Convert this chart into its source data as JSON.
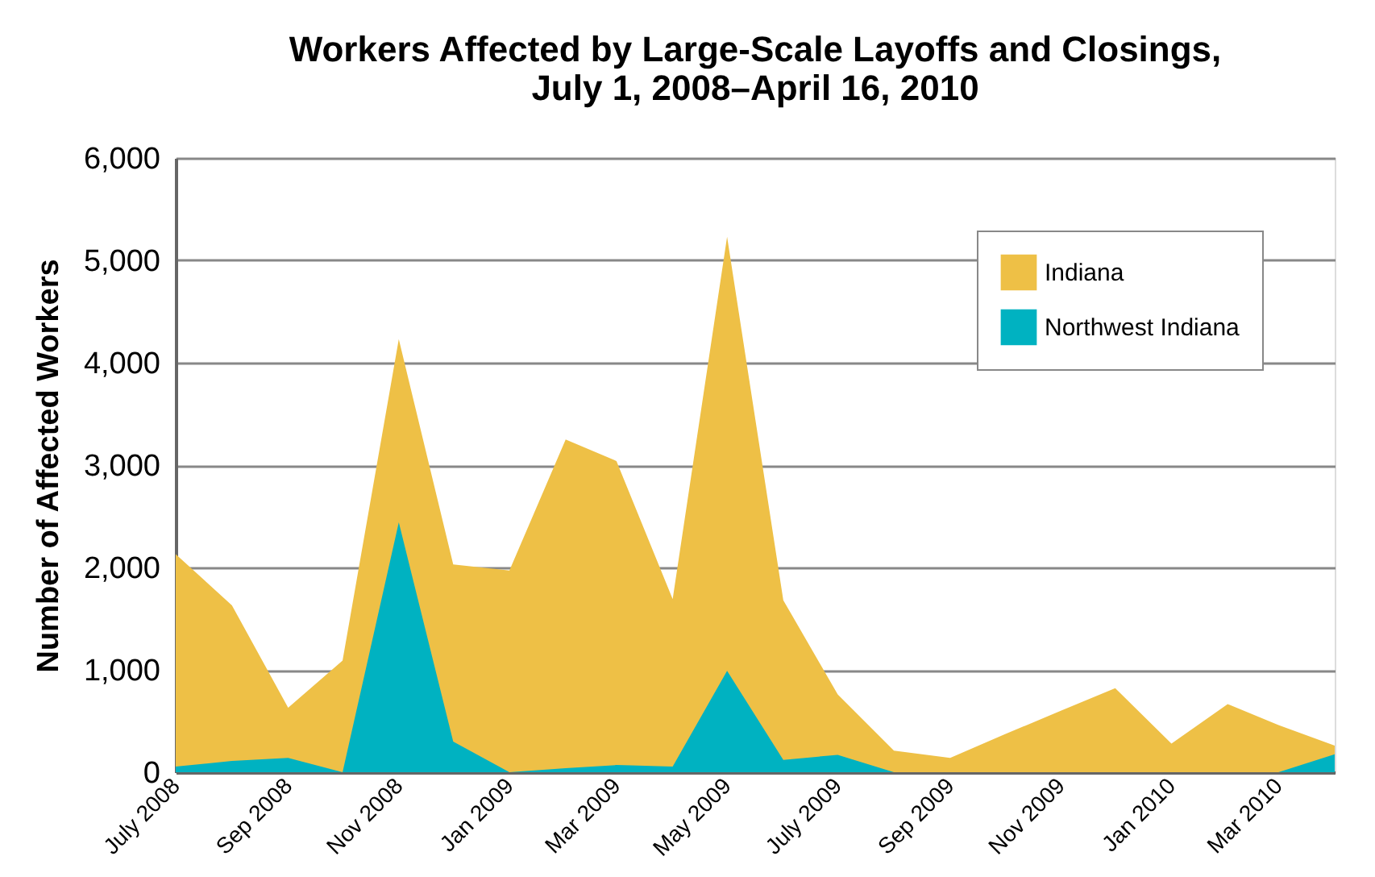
{
  "chart_data": {
    "type": "area",
    "title": [
      "Workers Affected by Large-Scale Layoffs and Closings,",
      "July 1, 2008–April 16, 2010"
    ],
    "ylabel": "Number of Affected Workers",
    "x": [
      "2008-07",
      "2008-08",
      "2008-09",
      "2008-10",
      "2008-11",
      "2008-12",
      "2009-01",
      "2009-02",
      "2009-03",
      "2009-04",
      "2009-05",
      "2009-06",
      "2009-07",
      "2009-08",
      "2009-09",
      "2009-10",
      "2009-11",
      "2009-12",
      "2010-01",
      "2010-02",
      "2010-03",
      "2010-04"
    ],
    "series": [
      {
        "name": "Indiana",
        "color": "#eec046",
        "values": [
          2130,
          1630,
          630,
          1090,
          4230,
          2030,
          1970,
          3250,
          3040,
          1690,
          5230,
          1680,
          760,
          210,
          140,
          370,
          600,
          820,
          280,
          665,
          460,
          260
        ]
      },
      {
        "name": "Northwest Indiana",
        "color": "#00b2c1",
        "values": [
          55,
          110,
          140,
          0,
          2440,
          300,
          0,
          40,
          70,
          55,
          990,
          120,
          170,
          0,
          0,
          0,
          0,
          0,
          0,
          0,
          0,
          175
        ]
      }
    ],
    "xlim": [
      "2008-07",
      "2010-04"
    ],
    "xticks": [
      {
        "value": "2008-07",
        "label": "July 2008"
      },
      {
        "value": "2008-09",
        "label": "Sep 2008"
      },
      {
        "value": "2008-11",
        "label": "Nov 2008"
      },
      {
        "value": "2009-01",
        "label": "Jan 2009"
      },
      {
        "value": "2009-03",
        "label": "Mar 2009"
      },
      {
        "value": "2009-05",
        "label": "May 2009"
      },
      {
        "value": "2009-07",
        "label": "July 2009"
      },
      {
        "value": "2009-09",
        "label": "Sep 2009"
      },
      {
        "value": "2009-11",
        "label": "Nov 2009"
      },
      {
        "value": "2010-01",
        "label": "Jan 2010"
      },
      {
        "value": "2010-03",
        "label": "Mar 2010"
      }
    ],
    "ylim": [
      0,
      6000
    ],
    "yticks": [
      {
        "value": 0,
        "label": "0"
      },
      {
        "value": 1000,
        "label": "1,000"
      },
      {
        "value": 2000,
        "label": "2,000"
      },
      {
        "value": 3000,
        "label": "3,000"
      },
      {
        "value": 4000,
        "label": "4,000"
      },
      {
        "value": 5000,
        "label": "5,000"
      },
      {
        "value": 6000,
        "label": "6,000"
      }
    ],
    "grid": "y",
    "legend": "top right"
  }
}
